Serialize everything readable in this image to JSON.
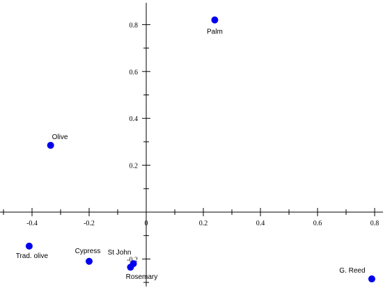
{
  "chart_data": {
    "type": "scatter",
    "title": "",
    "xlabel": "",
    "ylabel": "",
    "xlim": [
      -0.5,
      0.8
    ],
    "ylim": [
      -0.3,
      0.9
    ],
    "grid": false,
    "marker_color": "#0000ee",
    "x_ticks": [
      -0.4,
      -0.2,
      0,
      0.2,
      0.4,
      0.6,
      0.8
    ],
    "x_tick_labels": [
      "-0.4",
      "-0.2",
      "0",
      "0.2",
      "0.4",
      "0.6",
      "0.8"
    ],
    "y_ticks": [
      0.2,
      0.4,
      0.6,
      0.8
    ],
    "y_tick_labels": [
      "0.2",
      "0.4",
      "0.6",
      "0.8"
    ],
    "y_extra_tick_label": "-0.2",
    "points": [
      {
        "label": "Palm",
        "x": 0.24,
        "y": 0.82
      },
      {
        "label": "Olive",
        "x": -0.335,
        "y": 0.285
      },
      {
        "label": "Trad. olive",
        "x": -0.41,
        "y": -0.145
      },
      {
        "label": "Cypress",
        "x": -0.2,
        "y": -0.21
      },
      {
        "label": "St John",
        "x": -0.045,
        "y": -0.22
      },
      {
        "label": "Rosemary",
        "x": -0.055,
        "y": -0.235
      },
      {
        "label": "G. Reed",
        "x": 0.79,
        "y": -0.285
      }
    ]
  }
}
